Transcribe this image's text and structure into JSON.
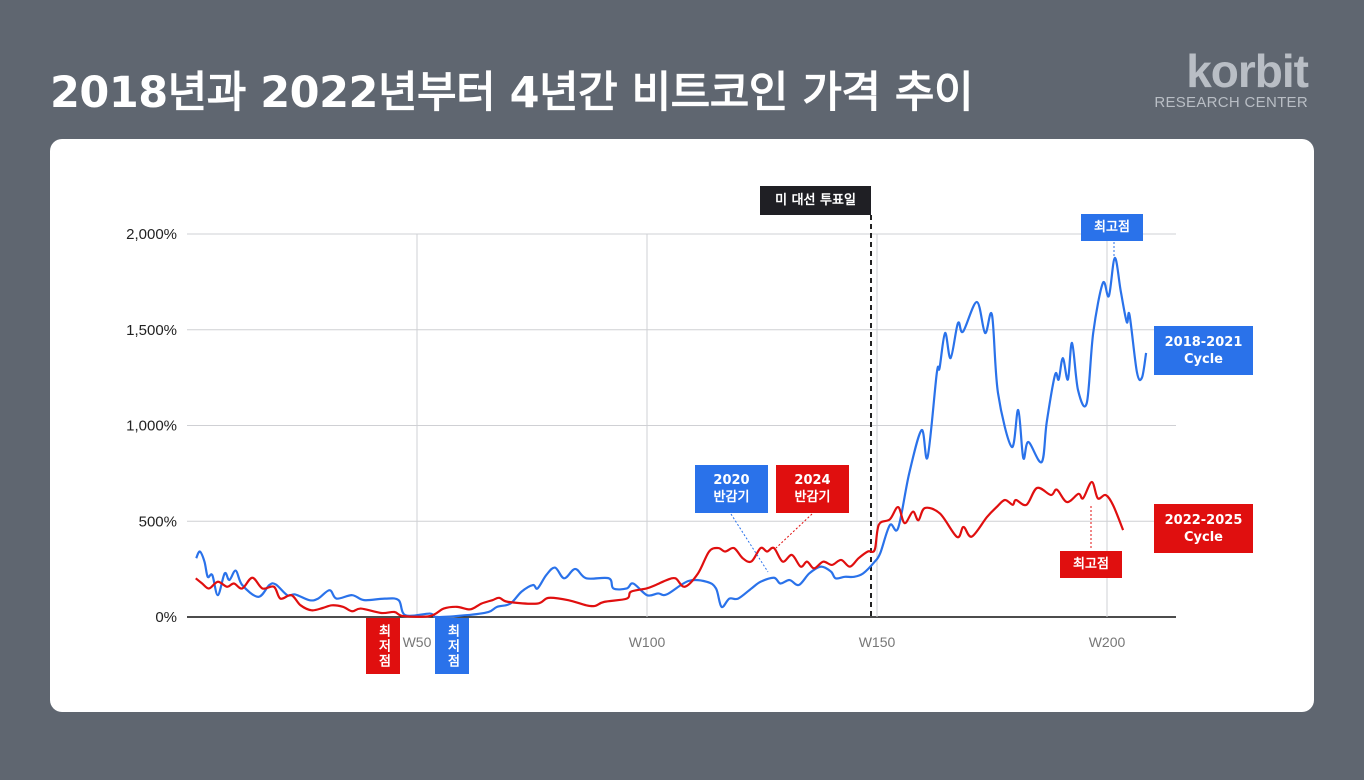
{
  "title": "2018년과 2022년부터 4년간 비트코인 가격 추이",
  "logo": {
    "brand": "korbit",
    "sub": "RESEARCH CENTER"
  },
  "colors": {
    "cycle_2018": "#2a72ea",
    "cycle_2022": "#e00f0f",
    "background": "#5f6670"
  },
  "chart_data": {
    "type": "line",
    "xlim": [
      0,
      213
    ],
    "ylim": [
      0,
      2000
    ],
    "x_ticks": [
      "W50",
      "W100",
      "W150",
      "W200"
    ],
    "x_tick_values": [
      50,
      100,
      150,
      200
    ],
    "y_ticks": [
      "2,000%",
      "1,500%",
      "1,000%",
      "500%",
      "0%"
    ],
    "y_tick_values": [
      2000,
      1500,
      1000,
      500,
      0
    ],
    "grid": true,
    "series": [
      {
        "name": "2018-2021 Cycle",
        "color": "#2a72ea",
        "points": [
          [
            2,
            307
          ],
          [
            2.8,
            342
          ],
          [
            3.8,
            289
          ],
          [
            4.5,
            210
          ],
          [
            5.5,
            219
          ],
          [
            6.7,
            114
          ],
          [
            8.2,
            228
          ],
          [
            9.2,
            193
          ],
          [
            10.6,
            242
          ],
          [
            12,
            167
          ],
          [
            15.5,
            105
          ],
          [
            17.9,
            167
          ],
          [
            19.3,
            170
          ],
          [
            21.8,
            114
          ],
          [
            23.5,
            118
          ],
          [
            26.6,
            88
          ],
          [
            28.5,
            96
          ],
          [
            31,
            140
          ],
          [
            32.5,
            96
          ],
          [
            35.9,
            114
          ],
          [
            38.5,
            88
          ],
          [
            43,
            96
          ],
          [
            46,
            88
          ],
          [
            47.5,
            9
          ],
          [
            52.8,
            18
          ],
          [
            54.3,
            0
          ],
          [
            60.6,
            9
          ],
          [
            65.5,
            26
          ],
          [
            67.4,
            53
          ],
          [
            70.3,
            70
          ],
          [
            72.7,
            132
          ],
          [
            75.2,
            167
          ],
          [
            76.2,
            149
          ],
          [
            78.1,
            219
          ],
          [
            80,
            258
          ],
          [
            82,
            202
          ],
          [
            84.4,
            251
          ],
          [
            86.8,
            202
          ],
          [
            91.7,
            202
          ],
          [
            92.7,
            149
          ],
          [
            95.6,
            149
          ],
          [
            97,
            175
          ],
          [
            100,
            114
          ],
          [
            102.4,
            123
          ],
          [
            104.3,
            118
          ],
          [
            109,
            188
          ],
          [
            113,
            184
          ],
          [
            115,
            149
          ],
          [
            116.2,
            53
          ],
          [
            117.9,
            96
          ],
          [
            119.8,
            96
          ],
          [
            122.7,
            149
          ],
          [
            124.7,
            184
          ],
          [
            127.6,
            205
          ],
          [
            129,
            175
          ],
          [
            131,
            193
          ],
          [
            133,
            167
          ],
          [
            135.3,
            228
          ],
          [
            137.8,
            263
          ],
          [
            140,
            237
          ],
          [
            141,
            202
          ],
          [
            143,
            210
          ],
          [
            145,
            210
          ],
          [
            147,
            228
          ],
          [
            149.5,
            289
          ],
          [
            150.7,
            333
          ],
          [
            152.8,
            480
          ],
          [
            154.6,
            465
          ],
          [
            157,
            750
          ],
          [
            159.7,
            976
          ],
          [
            161,
            835
          ],
          [
            163,
            1274
          ],
          [
            163.6,
            1300
          ],
          [
            164.8,
            1483
          ],
          [
            166,
            1352
          ],
          [
            167.6,
            1535
          ],
          [
            168.7,
            1490
          ],
          [
            171.7,
            1645
          ],
          [
            173.5,
            1483
          ],
          [
            175,
            1577
          ],
          [
            176.3,
            1170
          ],
          [
            179.3,
            888
          ],
          [
            180.7,
            1081
          ],
          [
            181.8,
            830
          ],
          [
            182.9,
            914
          ],
          [
            185.8,
            809
          ],
          [
            186.9,
            1018
          ],
          [
            188.7,
            1264
          ],
          [
            189.5,
            1240
          ],
          [
            190.4,
            1352
          ],
          [
            191.5,
            1240
          ],
          [
            192.4,
            1431
          ],
          [
            193.7,
            1185
          ],
          [
            195.6,
            1117
          ],
          [
            197,
            1483
          ],
          [
            199.1,
            1744
          ],
          [
            200.4,
            1676
          ],
          [
            201.7,
            1875
          ],
          [
            203,
            1700
          ],
          [
            204.3,
            1540
          ],
          [
            204.9,
            1577
          ],
          [
            206.5,
            1279
          ],
          [
            207.6,
            1250
          ],
          [
            208.5,
            1379
          ]
        ]
      },
      {
        "name": "2022-2025 Cycle",
        "color": "#e00f0f",
        "points": [
          [
            1.9,
            202
          ],
          [
            3.3,
            175
          ],
          [
            4.8,
            149
          ],
          [
            6.7,
            184
          ],
          [
            8.7,
            158
          ],
          [
            10.2,
            175
          ],
          [
            12,
            149
          ],
          [
            14.2,
            205
          ],
          [
            16.4,
            149
          ],
          [
            18.9,
            158
          ],
          [
            20.3,
            96
          ],
          [
            22.7,
            114
          ],
          [
            24.7,
            61
          ],
          [
            27.1,
            35
          ],
          [
            29.5,
            47
          ],
          [
            31.5,
            61
          ],
          [
            33.9,
            53
          ],
          [
            35.9,
            30
          ],
          [
            37.8,
            44
          ],
          [
            42.2,
            21
          ],
          [
            45.1,
            26
          ],
          [
            47,
            5
          ],
          [
            52.8,
            5
          ],
          [
            55.8,
            44
          ],
          [
            58.7,
            53
          ],
          [
            61.6,
            40
          ],
          [
            64,
            70
          ],
          [
            66.4,
            88
          ],
          [
            67.9,
            100
          ],
          [
            69.8,
            79
          ],
          [
            76.1,
            70
          ],
          [
            78.6,
            100
          ],
          [
            82.9,
            88
          ],
          [
            86.8,
            61
          ],
          [
            88.7,
            58
          ],
          [
            90.7,
            79
          ],
          [
            95.6,
            96
          ],
          [
            96.5,
            132
          ],
          [
            99.9,
            149
          ],
          [
            101.9,
            167
          ],
          [
            104.3,
            193
          ],
          [
            106.2,
            202
          ],
          [
            108.2,
            158
          ],
          [
            111.1,
            228
          ],
          [
            113.5,
            342
          ],
          [
            115.5,
            360
          ],
          [
            117,
            342
          ],
          [
            118.9,
            360
          ],
          [
            120.8,
            307
          ],
          [
            122.7,
            290
          ],
          [
            124.7,
            360
          ],
          [
            126.1,
            342
          ],
          [
            127.6,
            360
          ],
          [
            129.5,
            289
          ],
          [
            131.5,
            324
          ],
          [
            133.4,
            263
          ],
          [
            134.8,
            289
          ],
          [
            136.3,
            254
          ],
          [
            138.3,
            289
          ],
          [
            140.2,
            272
          ],
          [
            142.2,
            298
          ],
          [
            144.1,
            263
          ],
          [
            146,
            307
          ],
          [
            148,
            342
          ],
          [
            149.5,
            351
          ],
          [
            150.4,
            482
          ],
          [
            152.8,
            510
          ],
          [
            154.6,
            574
          ],
          [
            156,
            490
          ],
          [
            157.8,
            550
          ],
          [
            159,
            505
          ],
          [
            160.4,
            569
          ],
          [
            163.7,
            540
          ],
          [
            167.4,
            418
          ],
          [
            168.8,
            470
          ],
          [
            170.6,
            420
          ],
          [
            173.9,
            522
          ],
          [
            176,
            574
          ],
          [
            177.8,
            611
          ],
          [
            179.5,
            586
          ],
          [
            180.2,
            611
          ],
          [
            182.5,
            586
          ],
          [
            184.8,
            674
          ],
          [
            187.8,
            637
          ],
          [
            189.1,
            665
          ],
          [
            191.3,
            600
          ],
          [
            193.8,
            643
          ],
          [
            194.8,
            620
          ],
          [
            196.7,
            705
          ],
          [
            198,
            620
          ],
          [
            199.7,
            637
          ],
          [
            201.3,
            585
          ],
          [
            203.5,
            454
          ]
        ]
      }
    ],
    "annotations": {
      "election": {
        "label": "미 대선 투표일",
        "week": 148.7
      },
      "peak_2018": {
        "label": "최고점"
      },
      "peak_2022": {
        "label": "최고점"
      },
      "halving_2020": {
        "label": "2020\n반감기"
      },
      "halving_2024": {
        "label": "2024\n반감기"
      },
      "low_2022": {
        "label": "최저점"
      },
      "low_2018": {
        "label": "최저점"
      }
    },
    "legend": {
      "cycle_2018": "2018-2021\nCycle",
      "cycle_2022": "2022-2025\nCycle",
      "placement": "right"
    }
  }
}
